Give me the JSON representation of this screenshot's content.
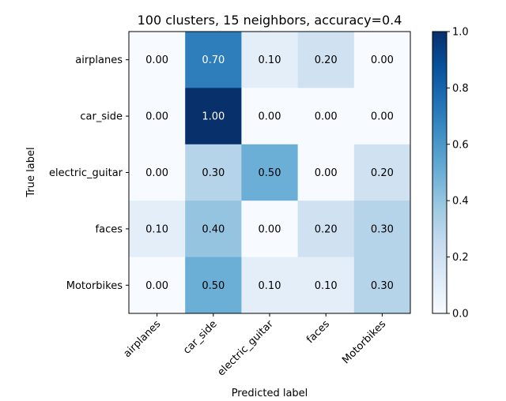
{
  "chart_data": {
    "type": "heatmap",
    "title": "100 clusters, 15 neighbors, accuracy=0.4",
    "xlabel": "Predicted label",
    "ylabel": "True label",
    "x_categories": [
      "airplanes",
      "car_side",
      "electric_guitar",
      "faces",
      "Motorbikes"
    ],
    "y_categories": [
      "airplanes",
      "car_side",
      "electric_guitar",
      "faces",
      "Motorbikes"
    ],
    "values": [
      [
        0.0,
        0.7,
        0.1,
        0.2,
        0.0
      ],
      [
        0.0,
        1.0,
        0.0,
        0.0,
        0.0
      ],
      [
        0.0,
        0.3,
        0.5,
        0.0,
        0.2
      ],
      [
        0.1,
        0.4,
        0.0,
        0.2,
        0.3
      ],
      [
        0.0,
        0.5,
        0.1,
        0.1,
        0.3
      ]
    ],
    "cell_labels": [
      [
        "0.00",
        "0.70",
        "0.10",
        "0.20",
        "0.00"
      ],
      [
        "0.00",
        "1.00",
        "0.00",
        "0.00",
        "0.00"
      ],
      [
        "0.00",
        "0.30",
        "0.50",
        "0.00",
        "0.20"
      ],
      [
        "0.10",
        "0.40",
        "0.00",
        "0.20",
        "0.30"
      ],
      [
        "0.00",
        "0.50",
        "0.10",
        "0.10",
        "0.30"
      ]
    ],
    "colormap": "Blues",
    "color_range": [
      0.0,
      1.0
    ],
    "colorbar_ticks": [
      "0.0",
      "0.2",
      "0.4",
      "0.6",
      "0.8",
      "1.0"
    ],
    "text_color_dark_threshold": 0.5,
    "text_colors": {
      "light": "#ffffff",
      "dark": "#000000"
    },
    "legend": "colorbar-right",
    "grid": false
  }
}
